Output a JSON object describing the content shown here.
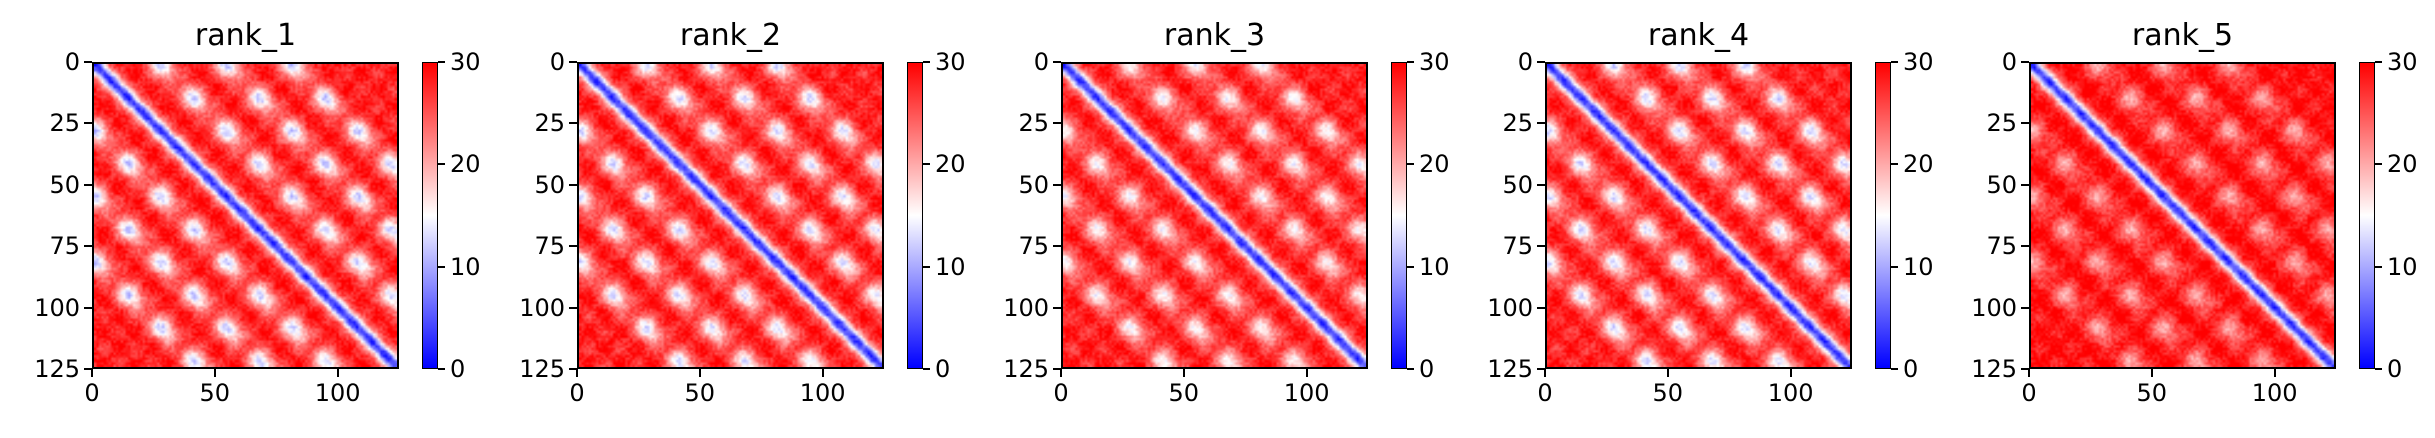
{
  "chart_data": [
    {
      "type": "heatmap",
      "title": "rank_1",
      "xlim": [
        0,
        125
      ],
      "ylim": [
        125,
        0
      ],
      "xticks": [
        "0",
        "50",
        "100"
      ],
      "yticks": [
        "0",
        "25",
        "50",
        "75",
        "100",
        "125"
      ],
      "colorbar": {
        "range": [
          0,
          30
        ],
        "ticks": [
          "0",
          "10",
          "20",
          "30"
        ],
        "colormap": "bwr"
      },
      "matrix_size": 125,
      "diagonal_value": 2,
      "off_diagonal_value": 28,
      "secondary_minimum_offsets": [
        27,
        54,
        81
      ],
      "secondary_minimum_value": 11
    },
    {
      "type": "heatmap",
      "title": "rank_2",
      "xlim": [
        0,
        125
      ],
      "ylim": [
        125,
        0
      ],
      "xticks": [
        "0",
        "50",
        "100"
      ],
      "yticks": [
        "0",
        "25",
        "50",
        "75",
        "100",
        "125"
      ],
      "colorbar": {
        "range": [
          0,
          30
        ],
        "ticks": [
          "0",
          "10",
          "20",
          "30"
        ],
        "colormap": "bwr"
      },
      "matrix_size": 125,
      "diagonal_value": 2,
      "off_diagonal_value": 28,
      "secondary_minimum_offsets": [
        27,
        54,
        81
      ],
      "secondary_minimum_value": 12
    },
    {
      "type": "heatmap",
      "title": "rank_3",
      "xlim": [
        0,
        125
      ],
      "ylim": [
        125,
        0
      ],
      "xticks": [
        "0",
        "50",
        "100"
      ],
      "yticks": [
        "0",
        "25",
        "50",
        "75",
        "100",
        "125"
      ],
      "colorbar": {
        "range": [
          0,
          30
        ],
        "ticks": [
          "0",
          "10",
          "20",
          "30"
        ],
        "colormap": "bwr"
      },
      "matrix_size": 125,
      "diagonal_value": 2,
      "off_diagonal_value": 28,
      "secondary_minimum_offsets": [
        27,
        54,
        81
      ],
      "secondary_minimum_value": 14
    },
    {
      "type": "heatmap",
      "title": "rank_4",
      "xlim": [
        0,
        125
      ],
      "ylim": [
        125,
        0
      ],
      "xticks": [
        "0",
        "50",
        "100"
      ],
      "yticks": [
        "0",
        "25",
        "50",
        "75",
        "100",
        "125"
      ],
      "colorbar": {
        "range": [
          0,
          30
        ],
        "ticks": [
          "0",
          "10",
          "20",
          "30"
        ],
        "colormap": "bwr"
      },
      "matrix_size": 125,
      "diagonal_value": 2,
      "off_diagonal_value": 28,
      "secondary_minimum_offsets": [
        27,
        54,
        81
      ],
      "secondary_minimum_value": 12
    },
    {
      "type": "heatmap",
      "title": "rank_5",
      "xlim": [
        0,
        125
      ],
      "ylim": [
        125,
        0
      ],
      "xticks": [
        "0",
        "50",
        "100"
      ],
      "yticks": [
        "0",
        "25",
        "50",
        "75",
        "100",
        "125"
      ],
      "colorbar": {
        "range": [
          0,
          30
        ],
        "ticks": [
          "0",
          "10",
          "20",
          "30"
        ],
        "colormap": "bwr"
      },
      "matrix_size": 125,
      "diagonal_value": 2,
      "off_diagonal_value": 29,
      "secondary_minimum_offsets": [
        27,
        54,
        81
      ],
      "secondary_minimum_value": 19
    }
  ]
}
